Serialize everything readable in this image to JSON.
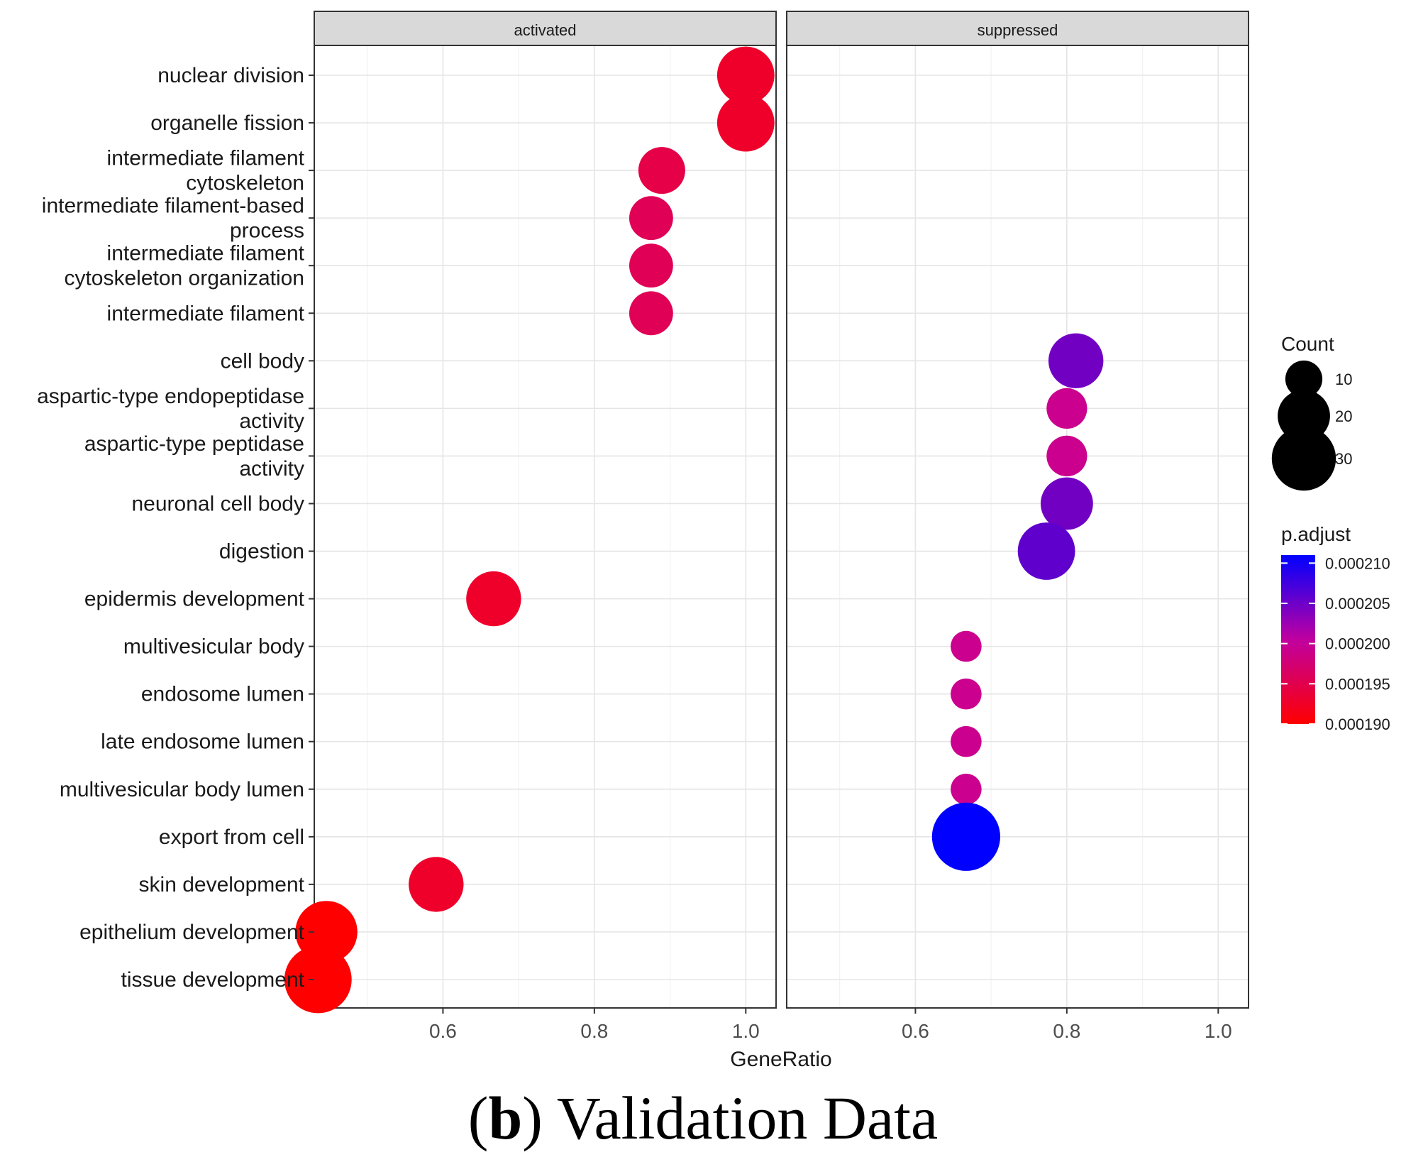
{
  "chart_data": {
    "type": "scatter",
    "subtype": "dotplot",
    "x_label": "GeneRatio",
    "x_ticks": [
      0.6,
      0.8,
      1.0
    ],
    "x_tick_labels": [
      "0.6",
      "0.8",
      "1.0"
    ],
    "xlim": [
      0.43,
      1.04
    ],
    "categories": [
      [
        "nuclear division"
      ],
      [
        "organelle fission"
      ],
      [
        "intermediate filament",
        "cytoskeleton"
      ],
      [
        "intermediate filament-based",
        "process"
      ],
      [
        "intermediate filament",
        "cytoskeleton organization"
      ],
      [
        "intermediate filament"
      ],
      [
        "cell body"
      ],
      [
        "aspartic-type endopeptidase",
        "activity"
      ],
      [
        "aspartic-type peptidase",
        "activity"
      ],
      [
        "neuronal cell body"
      ],
      [
        "digestion"
      ],
      [
        "epidermis development"
      ],
      [
        "multivesicular body"
      ],
      [
        "endosome lumen"
      ],
      [
        "late endosome lumen"
      ],
      [
        "multivesicular body lumen"
      ],
      [
        "export from cell"
      ],
      [
        "skin development"
      ],
      [
        "epithelium development"
      ],
      [
        "tissue development"
      ]
    ],
    "facets": [
      {
        "label": "activated",
        "points": [
          {
            "row": 0,
            "gene_ratio": 1.0,
            "count": 24,
            "p_adjust": 0.000193
          },
          {
            "row": 1,
            "gene_ratio": 1.0,
            "count": 24,
            "p_adjust": 0.000193
          },
          {
            "row": 2,
            "gene_ratio": 0.889,
            "count": 16,
            "p_adjust": 0.000195
          },
          {
            "row": 3,
            "gene_ratio": 0.875,
            "count": 14,
            "p_adjust": 0.000196
          },
          {
            "row": 4,
            "gene_ratio": 0.875,
            "count": 14,
            "p_adjust": 0.000196
          },
          {
            "row": 5,
            "gene_ratio": 0.875,
            "count": 14,
            "p_adjust": 0.000196
          },
          {
            "row": 11,
            "gene_ratio": 0.667,
            "count": 22,
            "p_adjust": 0.000193
          },
          {
            "row": 17,
            "gene_ratio": 0.591,
            "count": 22,
            "p_adjust": 0.000193
          },
          {
            "row": 18,
            "gene_ratio": 0.446,
            "count": 28,
            "p_adjust": 0.00019
          },
          {
            "row": 19,
            "gene_ratio": 0.435,
            "count": 33,
            "p_adjust": 0.00019
          }
        ]
      },
      {
        "label": "suppressed",
        "points": [
          {
            "row": 6,
            "gene_ratio": 0.812,
            "count": 22,
            "p_adjust": 0.000205
          },
          {
            "row": 7,
            "gene_ratio": 0.8,
            "count": 12,
            "p_adjust": 0.0002
          },
          {
            "row": 8,
            "gene_ratio": 0.8,
            "count": 12,
            "p_adjust": 0.0002
          },
          {
            "row": 9,
            "gene_ratio": 0.8,
            "count": 20,
            "p_adjust": 0.000205
          },
          {
            "row": 10,
            "gene_ratio": 0.773,
            "count": 24,
            "p_adjust": 0.000206
          },
          {
            "row": 12,
            "gene_ratio": 0.667,
            "count": 7,
            "p_adjust": 0.0002
          },
          {
            "row": 13,
            "gene_ratio": 0.667,
            "count": 7,
            "p_adjust": 0.0002
          },
          {
            "row": 14,
            "gene_ratio": 0.667,
            "count": 7,
            "p_adjust": 0.0002
          },
          {
            "row": 15,
            "gene_ratio": 0.667,
            "count": 7,
            "p_adjust": 0.0002
          },
          {
            "row": 16,
            "gene_ratio": 0.667,
            "count": 34,
            "p_adjust": 0.000211
          }
        ]
      }
    ],
    "size_legend": {
      "title": "Count",
      "values": [
        10,
        20,
        30
      ],
      "labels": [
        "10",
        "20",
        "30"
      ]
    },
    "color_legend": {
      "title": "p.adjust",
      "low_color": "#ff0000",
      "high_color": "#0000ff",
      "min": 0.00019,
      "max": 0.000211,
      "breaks": [
        0.00021,
        0.000205,
        0.0002,
        0.000195,
        0.00019
      ],
      "labels": [
        "0.000210",
        "0.000205",
        "0.000200",
        "0.000195",
        "0.000190"
      ]
    }
  },
  "caption": {
    "open": "(",
    "letter": "b",
    "rest": ") Validation Data"
  }
}
